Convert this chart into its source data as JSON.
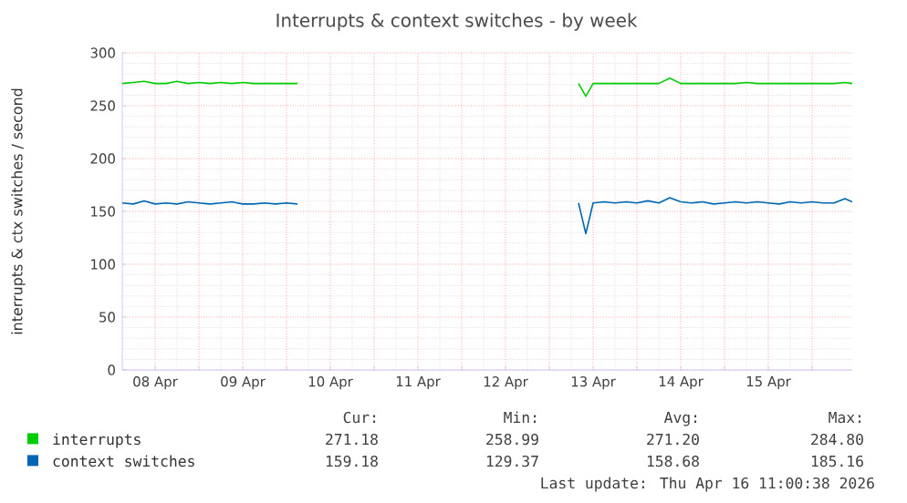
{
  "chart_data": {
    "type": "line",
    "title": "Interrupts & context switches - by week",
    "ylabel": "interrupts & ctx switches / second",
    "x": [
      "2026-04-08T03:00",
      "2026-04-08T06:00",
      "2026-04-08T09:00",
      "2026-04-08T12:00",
      "2026-04-08T15:00",
      "2026-04-08T18:00",
      "2026-04-08T21:00",
      "2026-04-09T00:00",
      "2026-04-09T03:00",
      "2026-04-09T06:00",
      "2026-04-09T09:00",
      "2026-04-09T12:00",
      "2026-04-09T15:00",
      "2026-04-09T18:00",
      "2026-04-09T21:00",
      "2026-04-10T00:00",
      "2026-04-10T03:00",
      "2026-04-11T12:00",
      "2026-04-13T08:00",
      "2026-04-13T10:00",
      "2026-04-13T12:00",
      "2026-04-13T15:00",
      "2026-04-13T18:00",
      "2026-04-13T21:00",
      "2026-04-14T00:00",
      "2026-04-14T03:00",
      "2026-04-14T06:00",
      "2026-04-14T09:00",
      "2026-04-14T12:00",
      "2026-04-14T15:00",
      "2026-04-14T18:00",
      "2026-04-14T21:00",
      "2026-04-15T00:00",
      "2026-04-15T03:00",
      "2026-04-15T06:00",
      "2026-04-15T09:00",
      "2026-04-15T12:00",
      "2026-04-15T15:00",
      "2026-04-15T18:00",
      "2026-04-15T21:00",
      "2026-04-16T00:00",
      "2026-04-16T03:00",
      "2026-04-16T06:00",
      "2026-04-16T09:00",
      "2026-04-16T11:00"
    ],
    "series": [
      {
        "name": "interrupts",
        "color": "#00cc00",
        "values": [
          271,
          272,
          273,
          271,
          271,
          273,
          271,
          272,
          271,
          272,
          271,
          272,
          271,
          271,
          271,
          271,
          271,
          null,
          271,
          259,
          271,
          271,
          271,
          271,
          271,
          271,
          271,
          276,
          271,
          271,
          271,
          271,
          271,
          271,
          272,
          271,
          271,
          271,
          271,
          271,
          271,
          271,
          271,
          272,
          271
        ]
      },
      {
        "name": "context switches",
        "color": "#0066b3",
        "values": [
          158,
          157,
          160,
          157,
          158,
          157,
          159,
          158,
          157,
          158,
          159,
          157,
          157,
          158,
          157,
          158,
          157,
          null,
          158,
          129,
          158,
          159,
          158,
          159,
          158,
          160,
          158,
          163,
          159,
          158,
          159,
          157,
          158,
          159,
          158,
          159,
          158,
          157,
          159,
          158,
          159,
          158,
          158,
          162,
          159
        ]
      }
    ],
    "xlim": [
      "2026-04-08T03:00",
      "2026-04-16T11:00"
    ],
    "xticks": [
      {
        "value": "2026-04-08T12:00",
        "label": "08 Apr"
      },
      {
        "value": "2026-04-09T00:00",
        "label": null
      },
      {
        "value": "2026-04-09T12:00",
        "label": "09 Apr"
      },
      {
        "value": "2026-04-10T00:00",
        "label": null
      },
      {
        "value": "2026-04-10T12:00",
        "label": "10 Apr"
      },
      {
        "value": "2026-04-11T00:00",
        "label": null
      },
      {
        "value": "2026-04-11T12:00",
        "label": "11 Apr"
      },
      {
        "value": "2026-04-12T00:00",
        "label": null
      },
      {
        "value": "2026-04-12T12:00",
        "label": "12 Apr"
      },
      {
        "value": "2026-04-13T00:00",
        "label": null
      },
      {
        "value": "2026-04-13T12:00",
        "label": "13 Apr"
      },
      {
        "value": "2026-04-14T00:00",
        "label": null
      },
      {
        "value": "2026-04-14T12:00",
        "label": "14 Apr"
      },
      {
        "value": "2026-04-15T00:00",
        "label": null
      },
      {
        "value": "2026-04-15T12:00",
        "label": "15 Apr"
      },
      {
        "value": "2026-04-16T00:00",
        "label": null
      }
    ],
    "ylim": [
      0,
      300
    ],
    "yticks": [
      0,
      50,
      100,
      150,
      200,
      250,
      300
    ],
    "grid": true,
    "legend": "bottom",
    "marker": "none",
    "line_style": "solid",
    "annotations": [
      "Cur:",
      "Min:",
      "Avg:",
      "Max:",
      "271.18",
      "258.99",
      "271.20",
      "284.80",
      "159.18",
      "129.37",
      "158.68",
      "185.16",
      "Last update: Thu Apr 16 11:00:38 2026"
    ]
  }
}
